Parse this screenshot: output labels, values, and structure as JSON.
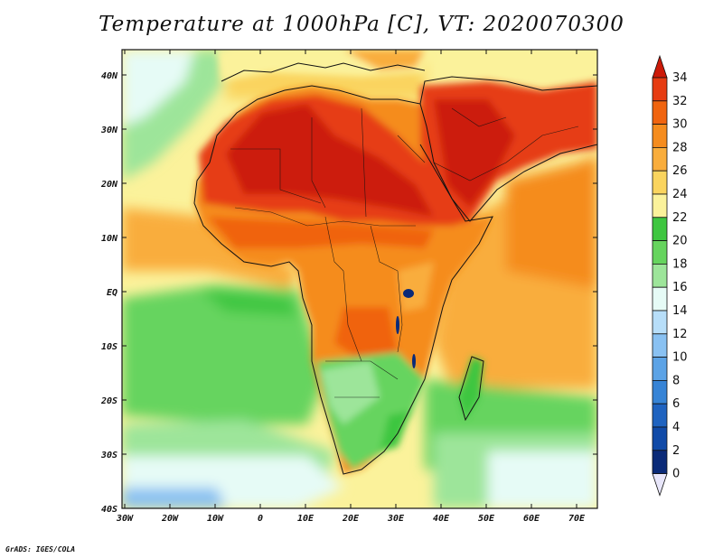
{
  "title": "Temperature at 1000hPa [C], VT: 2020070300",
  "credit": "GrADS: IGES/COLA",
  "map": {
    "lon_labels": [
      "30W",
      "20W",
      "10W",
      "0",
      "10E",
      "20E",
      "30E",
      "40E",
      "50E",
      "60E",
      "70E"
    ],
    "lat_labels": [
      "40N",
      "30N",
      "20N",
      "10N",
      "EQ",
      "10S",
      "20S",
      "30S",
      "40S"
    ]
  },
  "colorbar": {
    "labels": [
      "34",
      "32",
      "30",
      "28",
      "26",
      "24",
      "22",
      "20",
      "18",
      "16",
      "14",
      "12",
      "10",
      "8",
      "6",
      "4",
      "2",
      "0"
    ],
    "colors": [
      "#cc1a08",
      "#e63c12",
      "#f0640f",
      "#f58c1e",
      "#f9ad3c",
      "#fad45e",
      "#fbf29b",
      "#3ec640",
      "#66d45e",
      "#9de59a",
      "#e6fbf6",
      "#b7def9",
      "#89c1f2",
      "#5ca3e6",
      "#3784d6",
      "#1f63c0",
      "#104aa8",
      "#0a2a78"
    ]
  }
}
